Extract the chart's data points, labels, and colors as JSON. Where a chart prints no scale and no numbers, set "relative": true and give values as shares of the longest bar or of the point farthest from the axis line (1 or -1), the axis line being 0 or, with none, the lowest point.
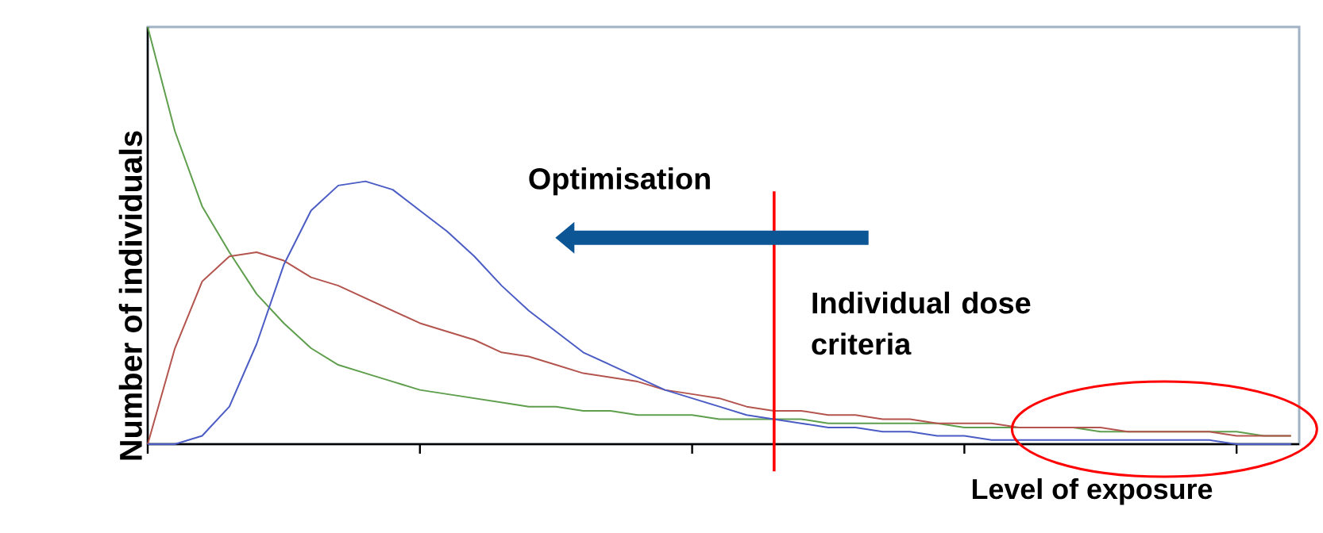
{
  "chart_data": {
    "type": "line",
    "relative": true,
    "ylabel": "Number of individuals",
    "xlabel": "Level of exposure",
    "annotations": [
      "Optimisation",
      "Individual dose criteria"
    ],
    "categories": [
      null,
      null,
      null,
      null,
      null,
      null,
      null,
      null,
      null,
      null,
      null,
      null,
      null,
      null,
      null,
      null,
      null,
      null,
      null,
      null,
      null,
      null,
      null,
      null,
      null,
      null,
      null,
      null,
      null,
      null,
      null,
      null,
      null,
      null,
      null,
      null,
      null,
      null,
      null,
      null,
      null,
      null,
      null
    ],
    "series": [
      {
        "color": "#5e9e4c",
        "values": [
          1.0,
          0.75,
          0.57,
          0.46,
          0.36,
          0.29,
          0.23,
          0.19,
          0.17,
          0.15,
          0.13,
          0.12,
          0.11,
          0.1,
          0.09,
          0.09,
          0.08,
          0.08,
          0.07,
          0.07,
          0.07,
          0.06,
          0.06,
          0.06,
          0.06,
          0.05,
          0.05,
          0.05,
          0.05,
          0.05,
          0.04,
          0.04,
          0.04,
          0.04,
          0.04,
          0.03,
          0.03,
          0.03,
          0.03,
          0.03,
          0.03,
          0.02,
          0.02
        ]
      },
      {
        "color": "#b4544e",
        "values": [
          0,
          0.23,
          0.39,
          0.45,
          0.46,
          0.44,
          0.4,
          0.38,
          0.35,
          0.32,
          0.29,
          0.27,
          0.25,
          0.22,
          0.21,
          0.19,
          0.17,
          0.16,
          0.15,
          0.13,
          0.12,
          0.11,
          0.09,
          0.08,
          0.08,
          0.07,
          0.07,
          0.06,
          0.06,
          0.05,
          0.05,
          0.05,
          0.04,
          0.04,
          0.04,
          0.04,
          0.03,
          0.03,
          0.03,
          0.03,
          0.02,
          0.02,
          0.02
        ]
      },
      {
        "color": "#4b5cc4",
        "values": [
          0,
          0,
          0.02,
          0.09,
          0.24,
          0.43,
          0.56,
          0.62,
          0.63,
          0.61,
          0.56,
          0.51,
          0.45,
          0.38,
          0.32,
          0.27,
          0.22,
          0.19,
          0.16,
          0.13,
          0.11,
          0.09,
          0.07,
          0.06,
          0.05,
          0.04,
          0.04,
          0.03,
          0.03,
          0.02,
          0.02,
          0.01,
          0.01,
          0.01,
          0.01,
          0.01,
          0.01,
          0.01,
          0.01,
          0.01,
          0,
          0,
          0
        ]
      }
    ]
  }
}
